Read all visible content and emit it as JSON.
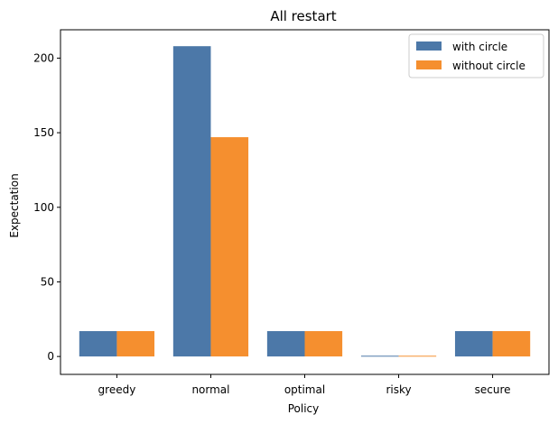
{
  "chart_data": {
    "type": "bar",
    "title": "All restart",
    "xlabel": "Policy",
    "ylabel": "Expectation",
    "categories": [
      "greedy",
      "normal",
      "optimal",
      "risky",
      "secure"
    ],
    "series": [
      {
        "name": "with circle",
        "color": "#4c78a8",
        "values": [
          17,
          208,
          17,
          0.5,
          17
        ]
      },
      {
        "name": "without circle",
        "color": "#f58f2f",
        "values": [
          17,
          147,
          17,
          0.5,
          17
        ]
      }
    ],
    "ylim": [
      -12,
      219
    ],
    "yticks": [
      0,
      50,
      100,
      150,
      200
    ],
    "grid": false,
    "legend": "top-right"
  }
}
